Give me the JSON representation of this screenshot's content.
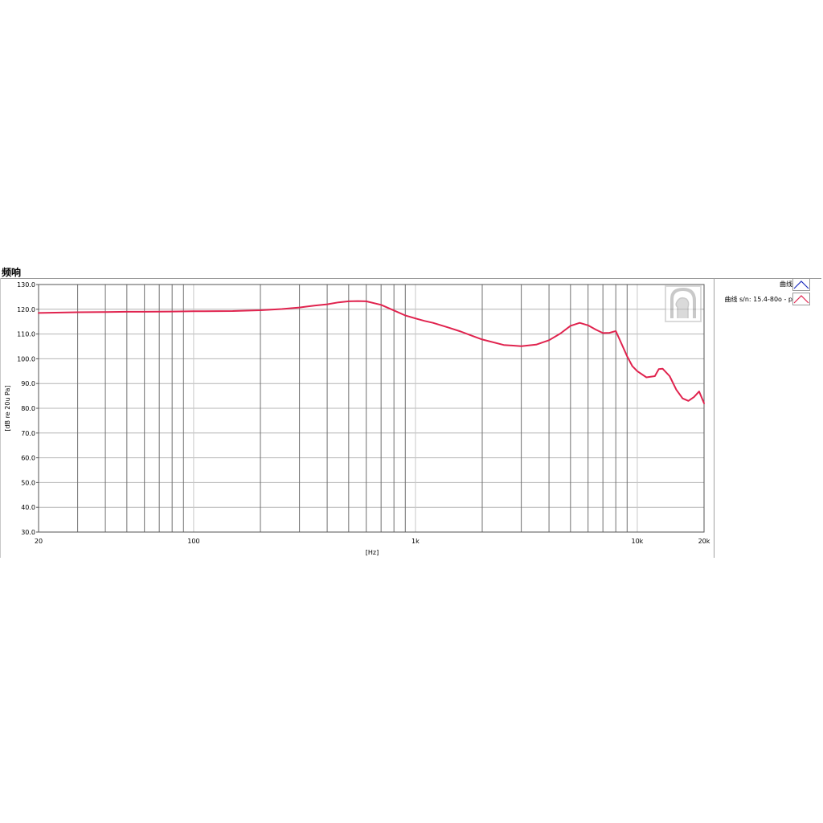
{
  "panel": {
    "title": "频响"
  },
  "legend": [
    {
      "label": "曲线",
      "color": "#1f2fbf"
    },
    {
      "label": "曲线 s/n: 15.4-80o - p",
      "color": "#e0234e"
    }
  ],
  "logo": {
    "name": "head-acoustics-logo"
  },
  "chart_data": {
    "type": "line",
    "title": "",
    "xlabel": "[Hz]",
    "ylabel": "[dB re 20u Pa]",
    "xscale": "log",
    "xlim": [
      20,
      20000
    ],
    "ylim": [
      30,
      130
    ],
    "yticks": [
      30,
      40,
      50,
      60,
      70,
      80,
      90,
      100,
      110,
      120,
      130
    ],
    "ytick_labels": [
      "30.0",
      "40.0",
      "50.0",
      "60.0",
      "70.0",
      "80.0",
      "90.0",
      "100.0",
      "110.0",
      "120.0",
      "130.0"
    ],
    "xticks": [
      20,
      100,
      1000,
      10000,
      20000
    ],
    "xtick_labels": [
      "20",
      "100",
      "1k",
      "10k",
      "20k"
    ],
    "grid": true,
    "legend_position": "right",
    "series": [
      {
        "name": "曲线 s/n: 15.4-80o - p",
        "color": "#e0234e",
        "x": [
          20,
          30,
          40,
          50,
          60,
          80,
          100,
          150,
          200,
          250,
          300,
          350,
          400,
          450,
          500,
          550,
          600,
          700,
          800,
          900,
          1000,
          1100,
          1200,
          1400,
          1600,
          1800,
          2000,
          2500,
          3000,
          3500,
          4000,
          4500,
          5000,
          5500,
          6000,
          6500,
          7000,
          7500,
          8000,
          8500,
          9000,
          9500,
          10000,
          11000,
          12000,
          12500,
          13000,
          14000,
          15000,
          16000,
          17000,
          18000,
          19000,
          20000
        ],
        "y": [
          118.5,
          118.8,
          118.9,
          119.0,
          119.0,
          119.1,
          119.2,
          119.3,
          119.6,
          120.1,
          120.7,
          121.5,
          122.0,
          122.8,
          123.2,
          123.3,
          123.2,
          121.8,
          119.5,
          117.5,
          116.3,
          115.3,
          114.5,
          112.7,
          111.0,
          109.3,
          107.8,
          105.6,
          105.1,
          105.7,
          107.5,
          110.2,
          113.3,
          114.5,
          113.5,
          111.8,
          110.4,
          110.5,
          111.2,
          106.0,
          101.0,
          97.0,
          95.0,
          92.5,
          93.0,
          95.8,
          96.0,
          93.0,
          87.5,
          84.0,
          83.0,
          84.5,
          86.8,
          82.0
        ]
      }
    ]
  }
}
